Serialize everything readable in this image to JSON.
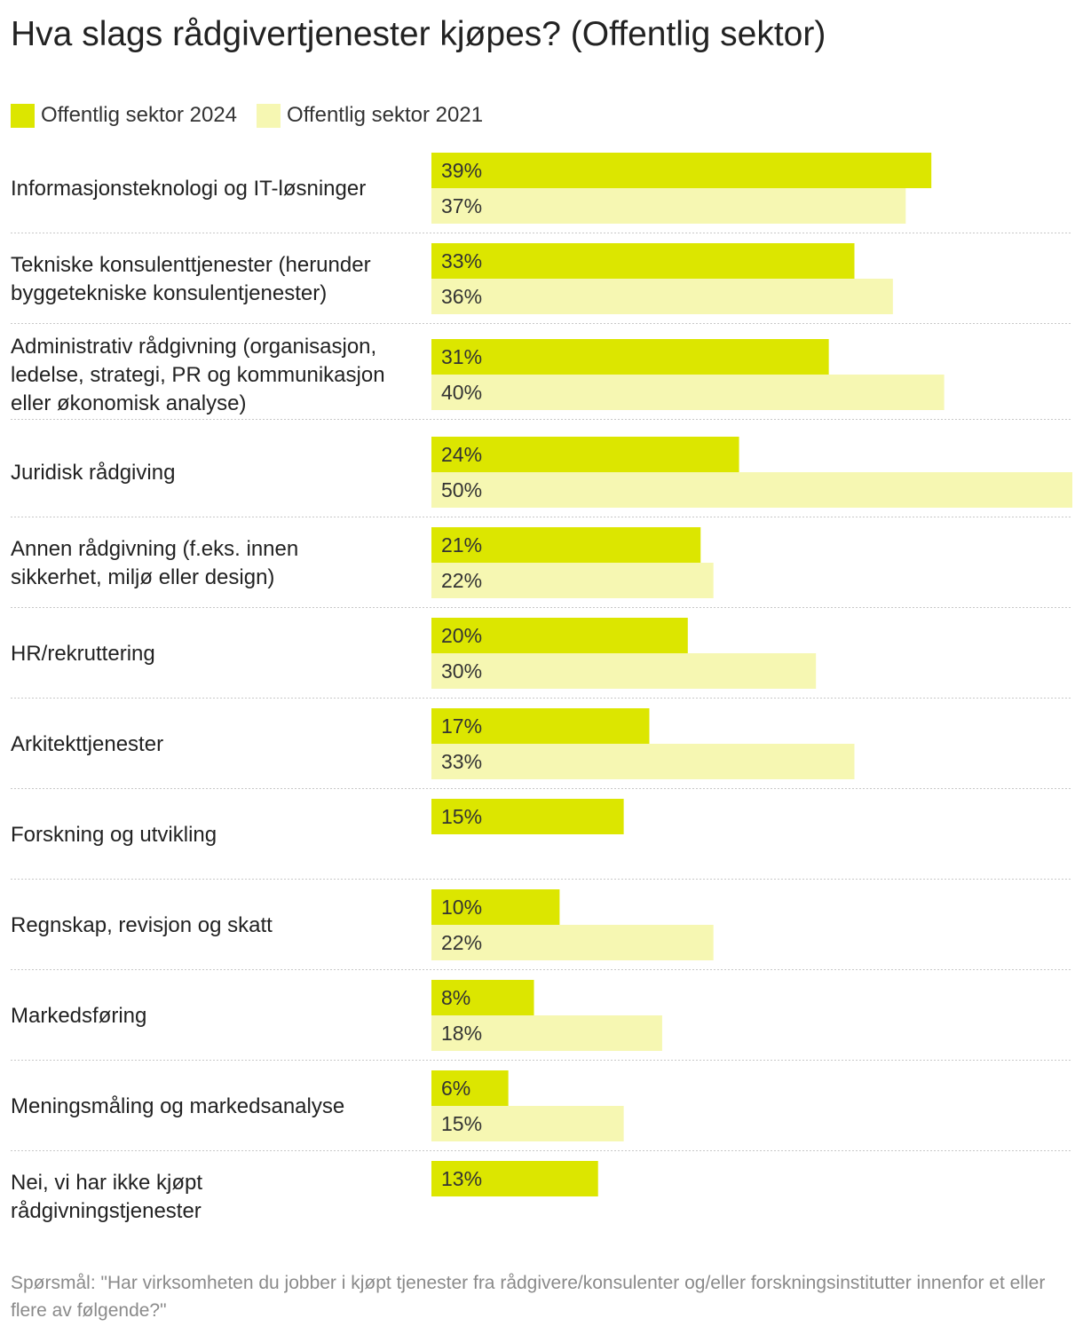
{
  "chart_data": {
    "type": "bar",
    "orientation": "horizontal",
    "title": "Hva slags rådgivertjenester kjøpes? (Offentlig sektor)",
    "categories": [
      [
        "Informasjonsteknologi og IT-løsninger"
      ],
      [
        "Tekniske konsulenttjenester (herunder",
        "byggetekniske konsulentjenester)"
      ],
      [
        "Administrativ rådgivning (organisasjon,",
        "ledelse, strategi, PR og kommunikasjon",
        "eller økonomisk analyse)"
      ],
      [
        "Juridisk rådgiving"
      ],
      [
        "Annen rådgivning (f.eks. innen",
        "sikkerhet, miljø eller design)"
      ],
      [
        "HR/rekruttering"
      ],
      [
        "Arkitekttjenester"
      ],
      [
        "Forskning og utvikling"
      ],
      [
        "Regnskap, revisjon og skatt"
      ],
      [
        "Markedsføring"
      ],
      [
        "Meningsmåling og markedsanalyse"
      ],
      [
        "Nei, vi har ikke kjøpt",
        "rådgivningstjenester"
      ]
    ],
    "series": [
      {
        "name": "Offentlig sektor 2024",
        "color": "#dce600",
        "values": [
          39,
          33,
          31,
          24,
          21,
          20,
          17,
          15,
          10,
          8,
          6,
          13
        ]
      },
      {
        "name": "Offentlig sektor 2021",
        "color": "#f6f7b2",
        "values": [
          37,
          36,
          40,
          50,
          22,
          30,
          33,
          null,
          22,
          18,
          15,
          null
        ]
      }
    ],
    "value_suffix": "%",
    "xlim": [
      0,
      50
    ],
    "legend": "top-left",
    "grid": false
  },
  "footnote": "Spørsmål:  \"Har virksomheten du jobber i kjøpt tjenester fra rådgivere/konsulenter og/eller forskningsinstitutter innenfor et eller flere av følgende?\""
}
